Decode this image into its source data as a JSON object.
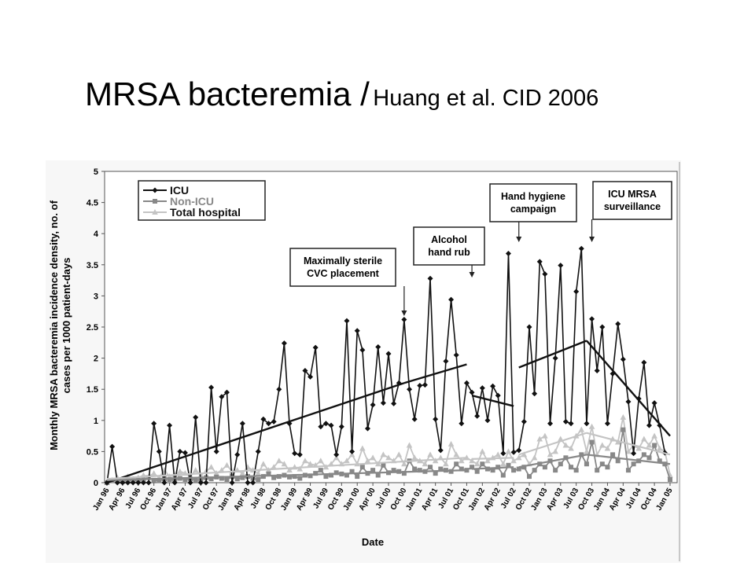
{
  "slide": {
    "title_main": "MRSA bacteremia /",
    "title_sub": "Huang et al. CID 2006"
  },
  "chart_data": {
    "type": "line",
    "xlabel": "Date",
    "ylabel_lines": [
      "Monthly MRSA bacteremia incidence density, no. of",
      "cases per 1000 patient-days"
    ],
    "ylim": [
      0,
      5
    ],
    "yticks": [
      0,
      0.5,
      1,
      1.5,
      2,
      2.5,
      3,
      3.5,
      4,
      4.5,
      5
    ],
    "ytick_labels": [
      "0",
      "0.5",
      "1",
      "1.5",
      "2",
      "2.5",
      "3",
      "3.5",
      "4",
      "4.5",
      "5"
    ],
    "xtick_labels": [
      "Jan 96",
      "Apr 96",
      "Jul 96",
      "Oct 96",
      "Jan 97",
      "Apr 97",
      "Jul 97",
      "Oct 97",
      "Jan 98",
      "Apr 98",
      "Jul 98",
      "Oct 98",
      "Jan 99",
      "Apr 99",
      "Jul 99",
      "Oct 99",
      "Jan 00",
      "Apr 00",
      "Jul 00",
      "Oct 00",
      "Jan 01",
      "Apr 01",
      "Jul 01",
      "Oct 01",
      "Jan 02",
      "Apr 02",
      "Jul 02",
      "Oct 02",
      "Jan 03",
      "Apr 03",
      "Jul 03",
      "Oct 03",
      "Jan 04",
      "Apr 04",
      "Jul 04",
      "Oct 04",
      "Jan 05"
    ],
    "months": 109,
    "legend_position": "top-left",
    "grid": false,
    "series": [
      {
        "name": "ICU",
        "color": "#111111",
        "marker": "diamond",
        "values": [
          0,
          0.58,
          0,
          0,
          0,
          0,
          0,
          0,
          0,
          0.95,
          0.5,
          0,
          0.92,
          0,
          0.5,
          0.48,
          0,
          1.05,
          0,
          0,
          1.53,
          0.5,
          1.38,
          1.45,
          0,
          0.45,
          0.95,
          0,
          0,
          0.5,
          1.02,
          0.95,
          0.98,
          1.5,
          2.24,
          0.95,
          0.47,
          0.45,
          1.8,
          1.7,
          2.17,
          0.9,
          0.95,
          0.92,
          0.45,
          0.9,
          2.6,
          0.5,
          2.44,
          2.13,
          0.87,
          1.25,
          2.18,
          1.28,
          2.07,
          1.27,
          1.6,
          2.62,
          1.5,
          1.02,
          1.56,
          1.57,
          3.28,
          1.02,
          0.52,
          1.95,
          2.94,
          2.05,
          0.95,
          1.6,
          1.45,
          1.07,
          1.52,
          1.0,
          1.55,
          1.4,
          0.47,
          3.68,
          0.49,
          0.52,
          0.98,
          2.5,
          1.43,
          3.55,
          3.35,
          0.95,
          2.0,
          3.49,
          0.98,
          0.95,
          3.07,
          3.76,
          0.95,
          2.63,
          1.8,
          2.5,
          0.95,
          1.75,
          2.55,
          1.98,
          1.3,
          0.47,
          1.35,
          1.93,
          0.92,
          1.28,
          0.92,
          0.48
        ]
      },
      {
        "name": "Non-ICU",
        "color": "#888888",
        "marker": "square",
        "values": [
          0,
          0.03,
          0.04,
          0.02,
          0.05,
          0.03,
          0.04,
          0.05,
          0.08,
          0.04,
          0.03,
          0.06,
          0.05,
          0.04,
          0.07,
          0.05,
          0.06,
          0.04,
          0.05,
          0.08,
          0.06,
          0.09,
          0.07,
          0.05,
          0.1,
          0.06,
          0.08,
          0.1,
          0.07,
          0.05,
          0.1,
          0.14,
          0.08,
          0.1,
          0.12,
          0.09,
          0.1,
          0.07,
          0.12,
          0.11,
          0.15,
          0.2,
          0.1,
          0.12,
          0.16,
          0.14,
          0.12,
          0.18,
          0.1,
          0.25,
          0.15,
          0.2,
          0.12,
          0.28,
          0.16,
          0.2,
          0.18,
          0.15,
          0.35,
          0.22,
          0.2,
          0.18,
          0.25,
          0.15,
          0.22,
          0.2,
          0.18,
          0.3,
          0.22,
          0.2,
          0.25,
          0.18,
          0.3,
          0.22,
          0.2,
          0.25,
          0.12,
          0.28,
          0.2,
          0.22,
          0.25,
          0.1,
          0.2,
          0.3,
          0.25,
          0.35,
          0.2,
          0.3,
          0.4,
          0.25,
          0.2,
          0.45,
          0.3,
          0.65,
          0.2,
          0.3,
          0.25,
          0.45,
          0.35,
          0.85,
          0.2,
          0.3,
          0.35,
          0.45,
          0.4,
          0.6,
          0.35,
          0.3,
          0.05
        ]
      },
      {
        "name": "Total hospital",
        "color": "#c4c4c4",
        "marker": "triangle",
        "values": [
          0,
          0.04,
          0.08,
          0.05,
          0.1,
          0.06,
          0.08,
          0.12,
          0.1,
          0.15,
          0.08,
          0.2,
          0.1,
          0.12,
          0.18,
          0.15,
          0.1,
          0.2,
          0.12,
          0.18,
          0.25,
          0.15,
          0.2,
          0.28,
          0.18,
          0.2,
          0.15,
          0.25,
          0.2,
          0.15,
          0.3,
          0.2,
          0.25,
          0.35,
          0.3,
          0.2,
          0.25,
          0.22,
          0.35,
          0.3,
          0.28,
          0.35,
          0.25,
          0.3,
          0.4,
          0.3,
          0.35,
          0.45,
          0.3,
          0.55,
          0.35,
          0.4,
          0.3,
          0.45,
          0.4,
          0.35,
          0.45,
          0.3,
          0.6,
          0.4,
          0.35,
          0.3,
          0.45,
          0.35,
          0.4,
          0.3,
          0.62,
          0.45,
          0.35,
          0.4,
          0.35,
          0.3,
          0.5,
          0.35,
          0.4,
          0.45,
          0.3,
          0.5,
          0.35,
          0.4,
          0.45,
          0.3,
          0.4,
          0.7,
          0.75,
          0.45,
          0.5,
          0.7,
          0.6,
          0.55,
          0.75,
          0.85,
          0.5,
          0.9,
          0.45,
          0.6,
          0.55,
          0.7,
          0.65,
          1.05,
          0.5,
          0.6,
          0.55,
          0.7,
          0.6,
          0.75,
          0.55,
          0.5,
          0.12
        ]
      }
    ],
    "trend_lines": [
      {
        "series": "ICU",
        "segments": [
          [
            [
              0,
              0
            ],
            [
              57,
              1.6
            ]
          ],
          [
            [
              57,
              1.6
            ],
            [
              69,
              1.9
            ]
          ],
          [
            [
              70,
              1.4
            ],
            [
              78,
              1.23
            ]
          ],
          [
            [
              79,
              1.85
            ],
            [
              92,
              2.28
            ]
          ],
          [
            [
              92,
              2.28
            ],
            [
              108,
              0.75
            ]
          ]
        ]
      },
      {
        "series": "Non-ICU",
        "segments": [
          [
            [
              0,
              0.04
            ],
            [
              69,
              0.2
            ]
          ],
          [
            [
              70,
              0.22
            ],
            [
              78,
              0.25
            ]
          ],
          [
            [
              79,
              0.25
            ],
            [
              92,
              0.45
            ]
          ],
          [
            [
              92,
              0.45
            ],
            [
              108,
              0.3
            ]
          ]
        ]
      },
      {
        "series": "Total hospital",
        "segments": [
          [
            [
              0,
              0.06
            ],
            [
              69,
              0.4
            ]
          ],
          [
            [
              70,
              0.38
            ],
            [
              78,
              0.4
            ]
          ],
          [
            [
              79,
              0.45
            ],
            [
              92,
              0.8
            ]
          ],
          [
            [
              92,
              0.8
            ],
            [
              108,
              0.45
            ]
          ]
        ]
      }
    ],
    "annotations": [
      {
        "lines": [
          "Maximally sterile",
          "CVC placement"
        ],
        "month": 57
      },
      {
        "lines": [
          "Alcohol",
          "hand rub"
        ],
        "month": 70
      },
      {
        "lines": [
          "Hand hygiene",
          "campaign"
        ],
        "month": 79
      },
      {
        "lines": [
          "ICU MRSA",
          "surveillance"
        ],
        "month": 93
      }
    ]
  }
}
